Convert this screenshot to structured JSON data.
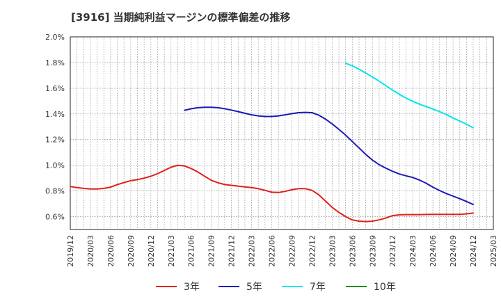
{
  "chart_data": {
    "type": "line",
    "title": "[3916]  当期純利益マージンの標準偏差の推移",
    "xlabel": "",
    "ylabel": "",
    "ylim": [
      0.5,
      2.0
    ],
    "y_ticks": [
      "0.6%",
      "0.8%",
      "1.0%",
      "1.2%",
      "1.4%",
      "1.6%",
      "1.8%",
      "2.0%"
    ],
    "y_tick_values": [
      0.6,
      0.8,
      1.0,
      1.2,
      1.4,
      1.6,
      1.8,
      2.0
    ],
    "x_ticks": [
      "2019/12",
      "2020/03",
      "2020/06",
      "2020/09",
      "2020/12",
      "2021/03",
      "2021/06",
      "2021/09",
      "2021/12",
      "2022/03",
      "2022/06",
      "2022/09",
      "2022/12",
      "2023/03",
      "2023/06",
      "2023/09",
      "2023/12",
      "2024/03",
      "2024/06",
      "2024/09",
      "2024/12",
      "2025/03"
    ],
    "grid": true,
    "legend_position": "bottom",
    "series": [
      {
        "name": "3年",
        "color": "#e0201b",
        "points": [
          [
            "2019/12",
            0.835
          ],
          [
            "2020/01",
            0.826
          ],
          [
            "2020/02",
            0.82
          ],
          [
            "2020/03",
            0.815
          ],
          [
            "2020/04",
            0.815
          ],
          [
            "2020/05",
            0.82
          ],
          [
            "2020/06",
            0.83
          ],
          [
            "2020/07",
            0.85
          ],
          [
            "2020/08",
            0.865
          ],
          [
            "2020/09",
            0.88
          ],
          [
            "2020/10",
            0.888
          ],
          [
            "2020/11",
            0.9
          ],
          [
            "2020/12",
            0.915
          ],
          [
            "2021/01",
            0.935
          ],
          [
            "2021/02",
            0.96
          ],
          [
            "2021/03",
            0.985
          ],
          [
            "2021/04",
            1.0
          ],
          [
            "2021/05",
            0.995
          ],
          [
            "2021/06",
            0.975
          ],
          [
            "2021/07",
            0.948
          ],
          [
            "2021/08",
            0.915
          ],
          [
            "2021/09",
            0.883
          ],
          [
            "2021/10",
            0.864
          ],
          [
            "2021/11",
            0.85
          ],
          [
            "2021/12",
            0.844
          ],
          [
            "2022/01",
            0.838
          ],
          [
            "2022/02",
            0.832
          ],
          [
            "2022/03",
            0.826
          ],
          [
            "2022/04",
            0.818
          ],
          [
            "2022/05",
            0.805
          ],
          [
            "2022/06",
            0.79
          ],
          [
            "2022/07",
            0.788
          ],
          [
            "2022/08",
            0.797
          ],
          [
            "2022/09",
            0.81
          ],
          [
            "2022/10",
            0.818
          ],
          [
            "2022/11",
            0.818
          ],
          [
            "2022/12",
            0.805
          ],
          [
            "2023/01",
            0.77
          ],
          [
            "2023/02",
            0.722
          ],
          [
            "2023/03",
            0.672
          ],
          [
            "2023/04",
            0.633
          ],
          [
            "2023/05",
            0.6
          ],
          [
            "2023/06",
            0.575
          ],
          [
            "2023/07",
            0.565
          ],
          [
            "2023/08",
            0.562
          ],
          [
            "2023/09",
            0.565
          ],
          [
            "2023/10",
            0.575
          ],
          [
            "2023/11",
            0.59
          ],
          [
            "2023/12",
            0.608
          ],
          [
            "2024/01",
            0.614
          ],
          [
            "2024/02",
            0.616
          ],
          [
            "2024/03",
            0.616
          ],
          [
            "2024/04",
            0.616
          ],
          [
            "2024/05",
            0.617
          ],
          [
            "2024/06",
            0.618
          ],
          [
            "2024/07",
            0.618
          ],
          [
            "2024/08",
            0.618
          ],
          [
            "2024/09",
            0.618
          ],
          [
            "2024/10",
            0.618
          ],
          [
            "2024/11",
            0.622
          ],
          [
            "2024/12",
            0.628
          ]
        ]
      },
      {
        "name": "5年",
        "color": "#1a1ab5",
        "points": [
          [
            "2021/05",
            1.428
          ],
          [
            "2021/06",
            1.44
          ],
          [
            "2021/07",
            1.448
          ],
          [
            "2021/08",
            1.452
          ],
          [
            "2021/09",
            1.452
          ],
          [
            "2021/10",
            1.448
          ],
          [
            "2021/11",
            1.44
          ],
          [
            "2021/12",
            1.43
          ],
          [
            "2022/01",
            1.418
          ],
          [
            "2022/02",
            1.405
          ],
          [
            "2022/03",
            1.393
          ],
          [
            "2022/04",
            1.385
          ],
          [
            "2022/05",
            1.38
          ],
          [
            "2022/06",
            1.38
          ],
          [
            "2022/07",
            1.385
          ],
          [
            "2022/08",
            1.393
          ],
          [
            "2022/09",
            1.402
          ],
          [
            "2022/10",
            1.41
          ],
          [
            "2022/11",
            1.412
          ],
          [
            "2022/12",
            1.41
          ],
          [
            "2023/01",
            1.39
          ],
          [
            "2023/02",
            1.36
          ],
          [
            "2023/03",
            1.322
          ],
          [
            "2023/04",
            1.28
          ],
          [
            "2023/05",
            1.235
          ],
          [
            "2023/06",
            1.185
          ],
          [
            "2023/07",
            1.135
          ],
          [
            "2023/08",
            1.085
          ],
          [
            "2023/09",
            1.04
          ],
          [
            "2023/10",
            1.005
          ],
          [
            "2023/11",
            0.977
          ],
          [
            "2023/12",
            0.953
          ],
          [
            "2024/01",
            0.932
          ],
          [
            "2024/02",
            0.918
          ],
          [
            "2024/03",
            0.905
          ],
          [
            "2024/04",
            0.885
          ],
          [
            "2024/05",
            0.86
          ],
          [
            "2024/06",
            0.83
          ],
          [
            "2024/07",
            0.803
          ],
          [
            "2024/08",
            0.78
          ],
          [
            "2024/09",
            0.76
          ],
          [
            "2024/10",
            0.74
          ],
          [
            "2024/11",
            0.718
          ],
          [
            "2024/12",
            0.695
          ]
        ]
      },
      {
        "name": "7年",
        "color": "#00e5ee",
        "points": [
          [
            "2023/05",
            1.795
          ],
          [
            "2023/06",
            1.775
          ],
          [
            "2023/07",
            1.748
          ],
          [
            "2023/08",
            1.718
          ],
          [
            "2023/09",
            1.688
          ],
          [
            "2023/10",
            1.655
          ],
          [
            "2023/11",
            1.62
          ],
          [
            "2023/12",
            1.585
          ],
          [
            "2024/01",
            1.553
          ],
          [
            "2024/02",
            1.523
          ],
          [
            "2024/03",
            1.498
          ],
          [
            "2024/04",
            1.476
          ],
          [
            "2024/05",
            1.457
          ],
          [
            "2024/06",
            1.438
          ],
          [
            "2024/07",
            1.418
          ],
          [
            "2024/08",
            1.395
          ],
          [
            "2024/09",
            1.368
          ],
          [
            "2024/10",
            1.345
          ],
          [
            "2024/11",
            1.32
          ],
          [
            "2024/12",
            1.292
          ]
        ]
      },
      {
        "name": "10年",
        "color": "#1e8c1e",
        "points": []
      }
    ]
  }
}
